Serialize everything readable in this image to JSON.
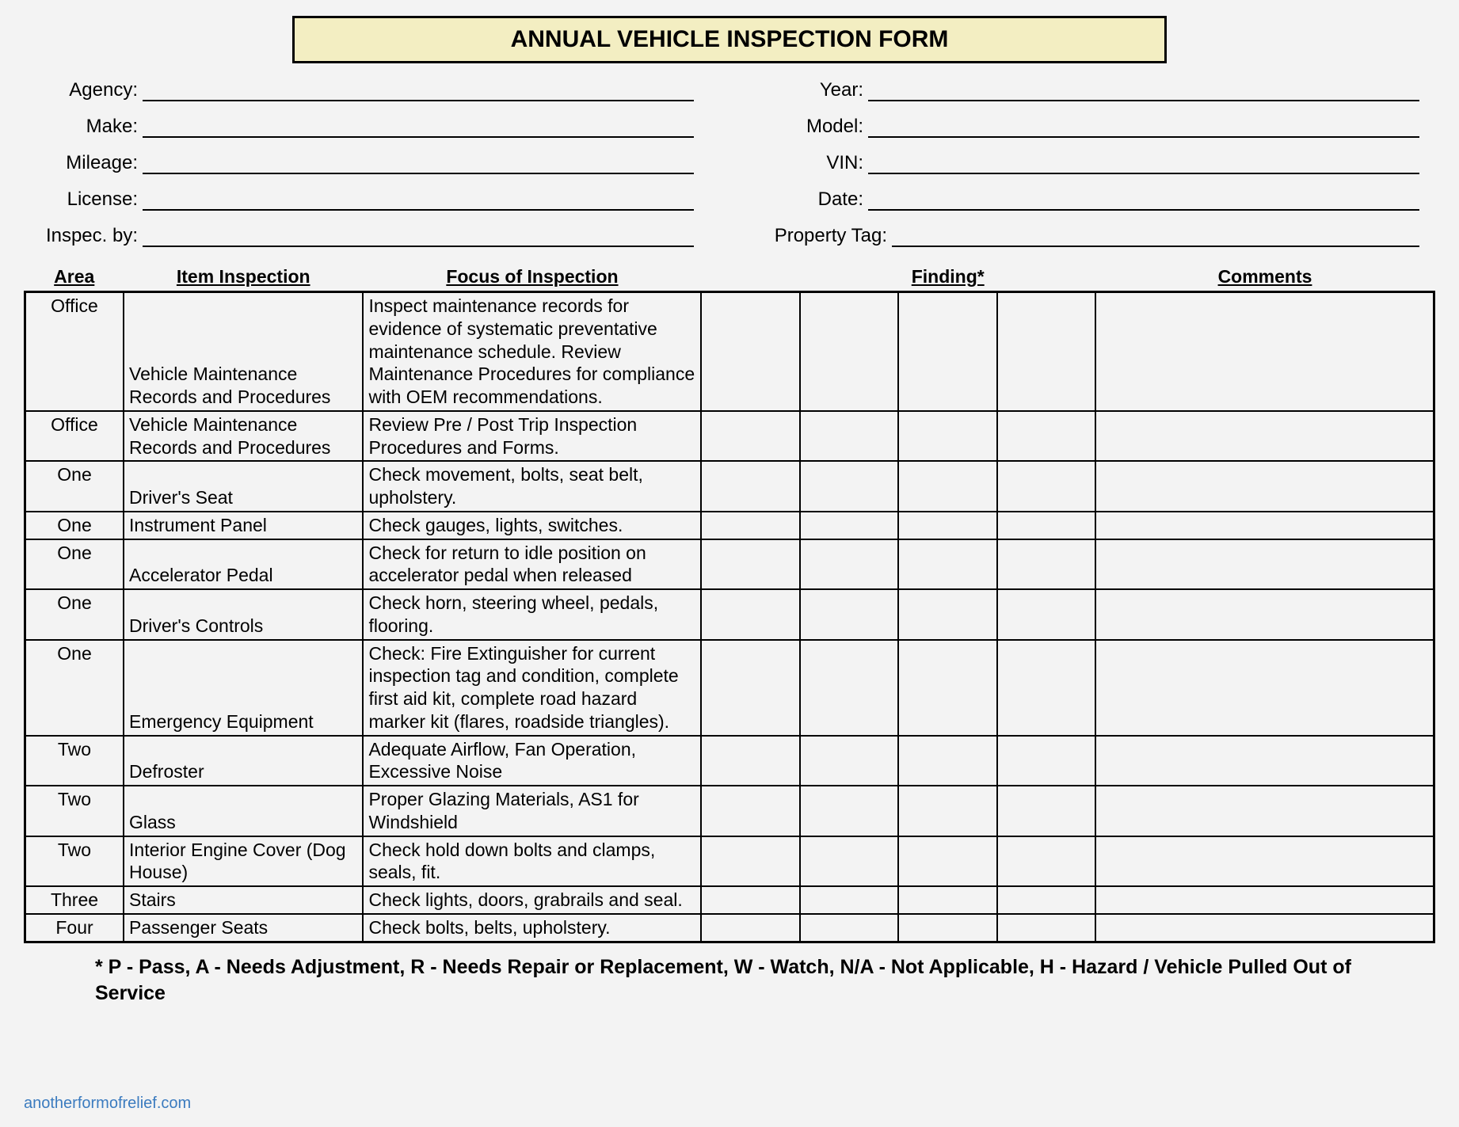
{
  "title": "ANNUAL VEHICLE INSPECTION FORM",
  "header": {
    "left": [
      {
        "label": "Agency:"
      },
      {
        "label": "Make:"
      },
      {
        "label": "Mileage:"
      },
      {
        "label": "License:"
      },
      {
        "label": "Inspec. by:"
      }
    ],
    "right": [
      {
        "label": "Year:"
      },
      {
        "label": "Model:"
      },
      {
        "label": "VIN:"
      },
      {
        "label": "Date:"
      },
      {
        "label": "Property Tag:"
      }
    ]
  },
  "columns": {
    "area": "Area",
    "item": "Item Inspection",
    "focus": "Focus of Inspection",
    "finding": "Finding*",
    "comments": "Comments"
  },
  "rows": [
    {
      "area": "Office",
      "item": "Vehicle Maintenance Records and Procedures",
      "focus": "Inspect maintenance records for evidence of systematic preventative maintenance schedule.  Review Maintenance Procedures for compliance with OEM recommendations."
    },
    {
      "area": "Office",
      "item": "Vehicle Maintenance Records and Procedures",
      "focus": "Review Pre / Post Trip Inspection Procedures and Forms."
    },
    {
      "area": "One",
      "item": "Driver's Seat",
      "focus": "Check movement, bolts, seat belt, upholstery."
    },
    {
      "area": "One",
      "item": "Instrument Panel",
      "focus": "Check gauges, lights, switches."
    },
    {
      "area": "One",
      "item": "Accelerator Pedal",
      "focus": "Check for return to idle position on accelerator pedal when released"
    },
    {
      "area": "One",
      "item": "Driver's Controls",
      "focus": "Check horn, steering wheel, pedals, flooring."
    },
    {
      "area": "One",
      "item": "Emergency Equipment",
      "focus": "Check: Fire Extinguisher for current inspection tag and condition, complete first aid kit, complete road hazard marker kit (flares, roadside triangles)."
    },
    {
      "area": "Two",
      "item": "Defroster",
      "focus": "Adequate Airflow, Fan Operation, Excessive Noise"
    },
    {
      "area": "Two",
      "item": "Glass",
      "focus": "Proper Glazing Materials, AS1 for Windshield"
    },
    {
      "area": "Two",
      "item": "Interior Engine Cover (Dog House)",
      "focus": "Check hold down bolts and clamps, seals, fit."
    },
    {
      "area": "Three",
      "item": "Stairs",
      "focus": "Check lights, doors, grabrails and seal."
    },
    {
      "area": "Four",
      "item": "Passenger Seats",
      "focus": "Check bolts, belts, upholstery."
    }
  ],
  "legend": "* P - Pass, A - Needs Adjustment, R - Needs Repair or Replacement, W - Watch, N/A - Not Applicable, H - Hazard / Vehicle Pulled Out of Service",
  "watermark": "anotherformofrelief.com"
}
